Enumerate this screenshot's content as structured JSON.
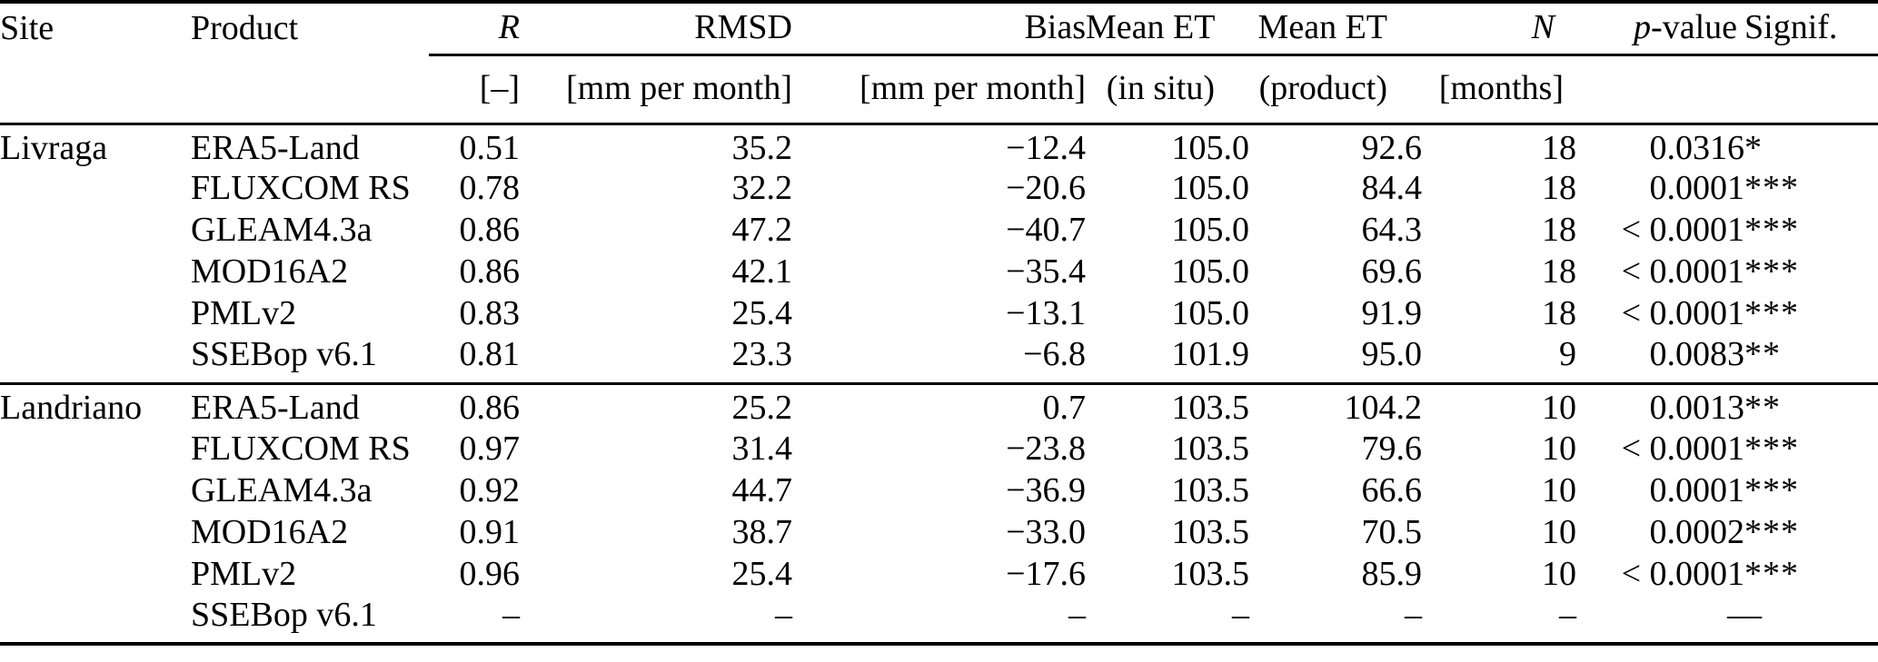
{
  "table": {
    "header": {
      "site": "Site",
      "product": "Product",
      "r": "R",
      "rmsd": "RMSD",
      "bias": "Bias",
      "mean_et_1": "Mean ET",
      "mean_et_2": "Mean ET",
      "n": "N",
      "p_italic": "p",
      "p_rest": "-value",
      "signif": "Signif."
    },
    "units": {
      "r": "[–]",
      "rmsd": "[mm per month]",
      "bias": "[mm per month]",
      "mean_et_1": "(in situ)",
      "mean_et_2": "(product)",
      "n": "[months]"
    },
    "blocks": [
      {
        "site": "Livraga",
        "rows": [
          {
            "product": "ERA5-Land",
            "r": "0.51",
            "rmsd": "35.2",
            "bias": "−12.4",
            "mean_et_insitu": "105.0",
            "mean_et_product": "92.6",
            "n": "18",
            "p_value": "0.0316",
            "signif": "*"
          },
          {
            "product": "FLUXCOM RS",
            "r": "0.78",
            "rmsd": "32.2",
            "bias": "−20.6",
            "mean_et_insitu": "105.0",
            "mean_et_product": "84.4",
            "n": "18",
            "p_value": "0.0001",
            "signif": "***"
          },
          {
            "product": "GLEAM4.3a",
            "r": "0.86",
            "rmsd": "47.2",
            "bias": "−40.7",
            "mean_et_insitu": "105.0",
            "mean_et_product": "64.3",
            "n": "18",
            "p_value": "< 0.0001",
            "signif": "***"
          },
          {
            "product": "MOD16A2",
            "r": "0.86",
            "rmsd": "42.1",
            "bias": "−35.4",
            "mean_et_insitu": "105.0",
            "mean_et_product": "69.6",
            "n": "18",
            "p_value": "< 0.0001",
            "signif": "***"
          },
          {
            "product": "PMLv2",
            "r": "0.83",
            "rmsd": "25.4",
            "bias": "−13.1",
            "mean_et_insitu": "105.0",
            "mean_et_product": "91.9",
            "n": "18",
            "p_value": "< 0.0001",
            "signif": "***"
          },
          {
            "product": "SSEBop v6.1",
            "r": "0.81",
            "rmsd": "23.3",
            "bias": "−6.8",
            "mean_et_insitu": "101.9",
            "mean_et_product": "95.0",
            "n": "9",
            "p_value": "0.0083",
            "signif": "**"
          }
        ]
      },
      {
        "site": "Landriano",
        "rows": [
          {
            "product": "ERA5-Land",
            "r": "0.86",
            "rmsd": "25.2",
            "bias": "0.7",
            "mean_et_insitu": "103.5",
            "mean_et_product": "104.2",
            "n": "10",
            "p_value": "0.0013",
            "signif": "**"
          },
          {
            "product": "FLUXCOM RS",
            "r": "0.97",
            "rmsd": "31.4",
            "bias": "−23.8",
            "mean_et_insitu": "103.5",
            "mean_et_product": "79.6",
            "n": "10",
            "p_value": "< 0.0001",
            "signif": "***"
          },
          {
            "product": "GLEAM4.3a",
            "r": "0.92",
            "rmsd": "44.7",
            "bias": "−36.9",
            "mean_et_insitu": "103.5",
            "mean_et_product": "66.6",
            "n": "10",
            "p_value": "0.0001",
            "signif": "***"
          },
          {
            "product": "MOD16A2",
            "r": "0.91",
            "rmsd": "38.7",
            "bias": "−33.0",
            "mean_et_insitu": "103.5",
            "mean_et_product": "70.5",
            "n": "10",
            "p_value": "0.0002",
            "signif": "***"
          },
          {
            "product": "PMLv2",
            "r": "0.96",
            "rmsd": "25.4",
            "bias": "−17.6",
            "mean_et_insitu": "103.5",
            "mean_et_product": "85.9",
            "n": "10",
            "p_value": "< 0.0001",
            "signif": "***"
          },
          {
            "product": "SSEBop v6.1",
            "r": "–",
            "rmsd": "–",
            "bias": "–",
            "mean_et_insitu": "–",
            "mean_et_product": "–",
            "n": "–",
            "p_value": "–",
            "signif": "–"
          }
        ]
      }
    ]
  }
}
